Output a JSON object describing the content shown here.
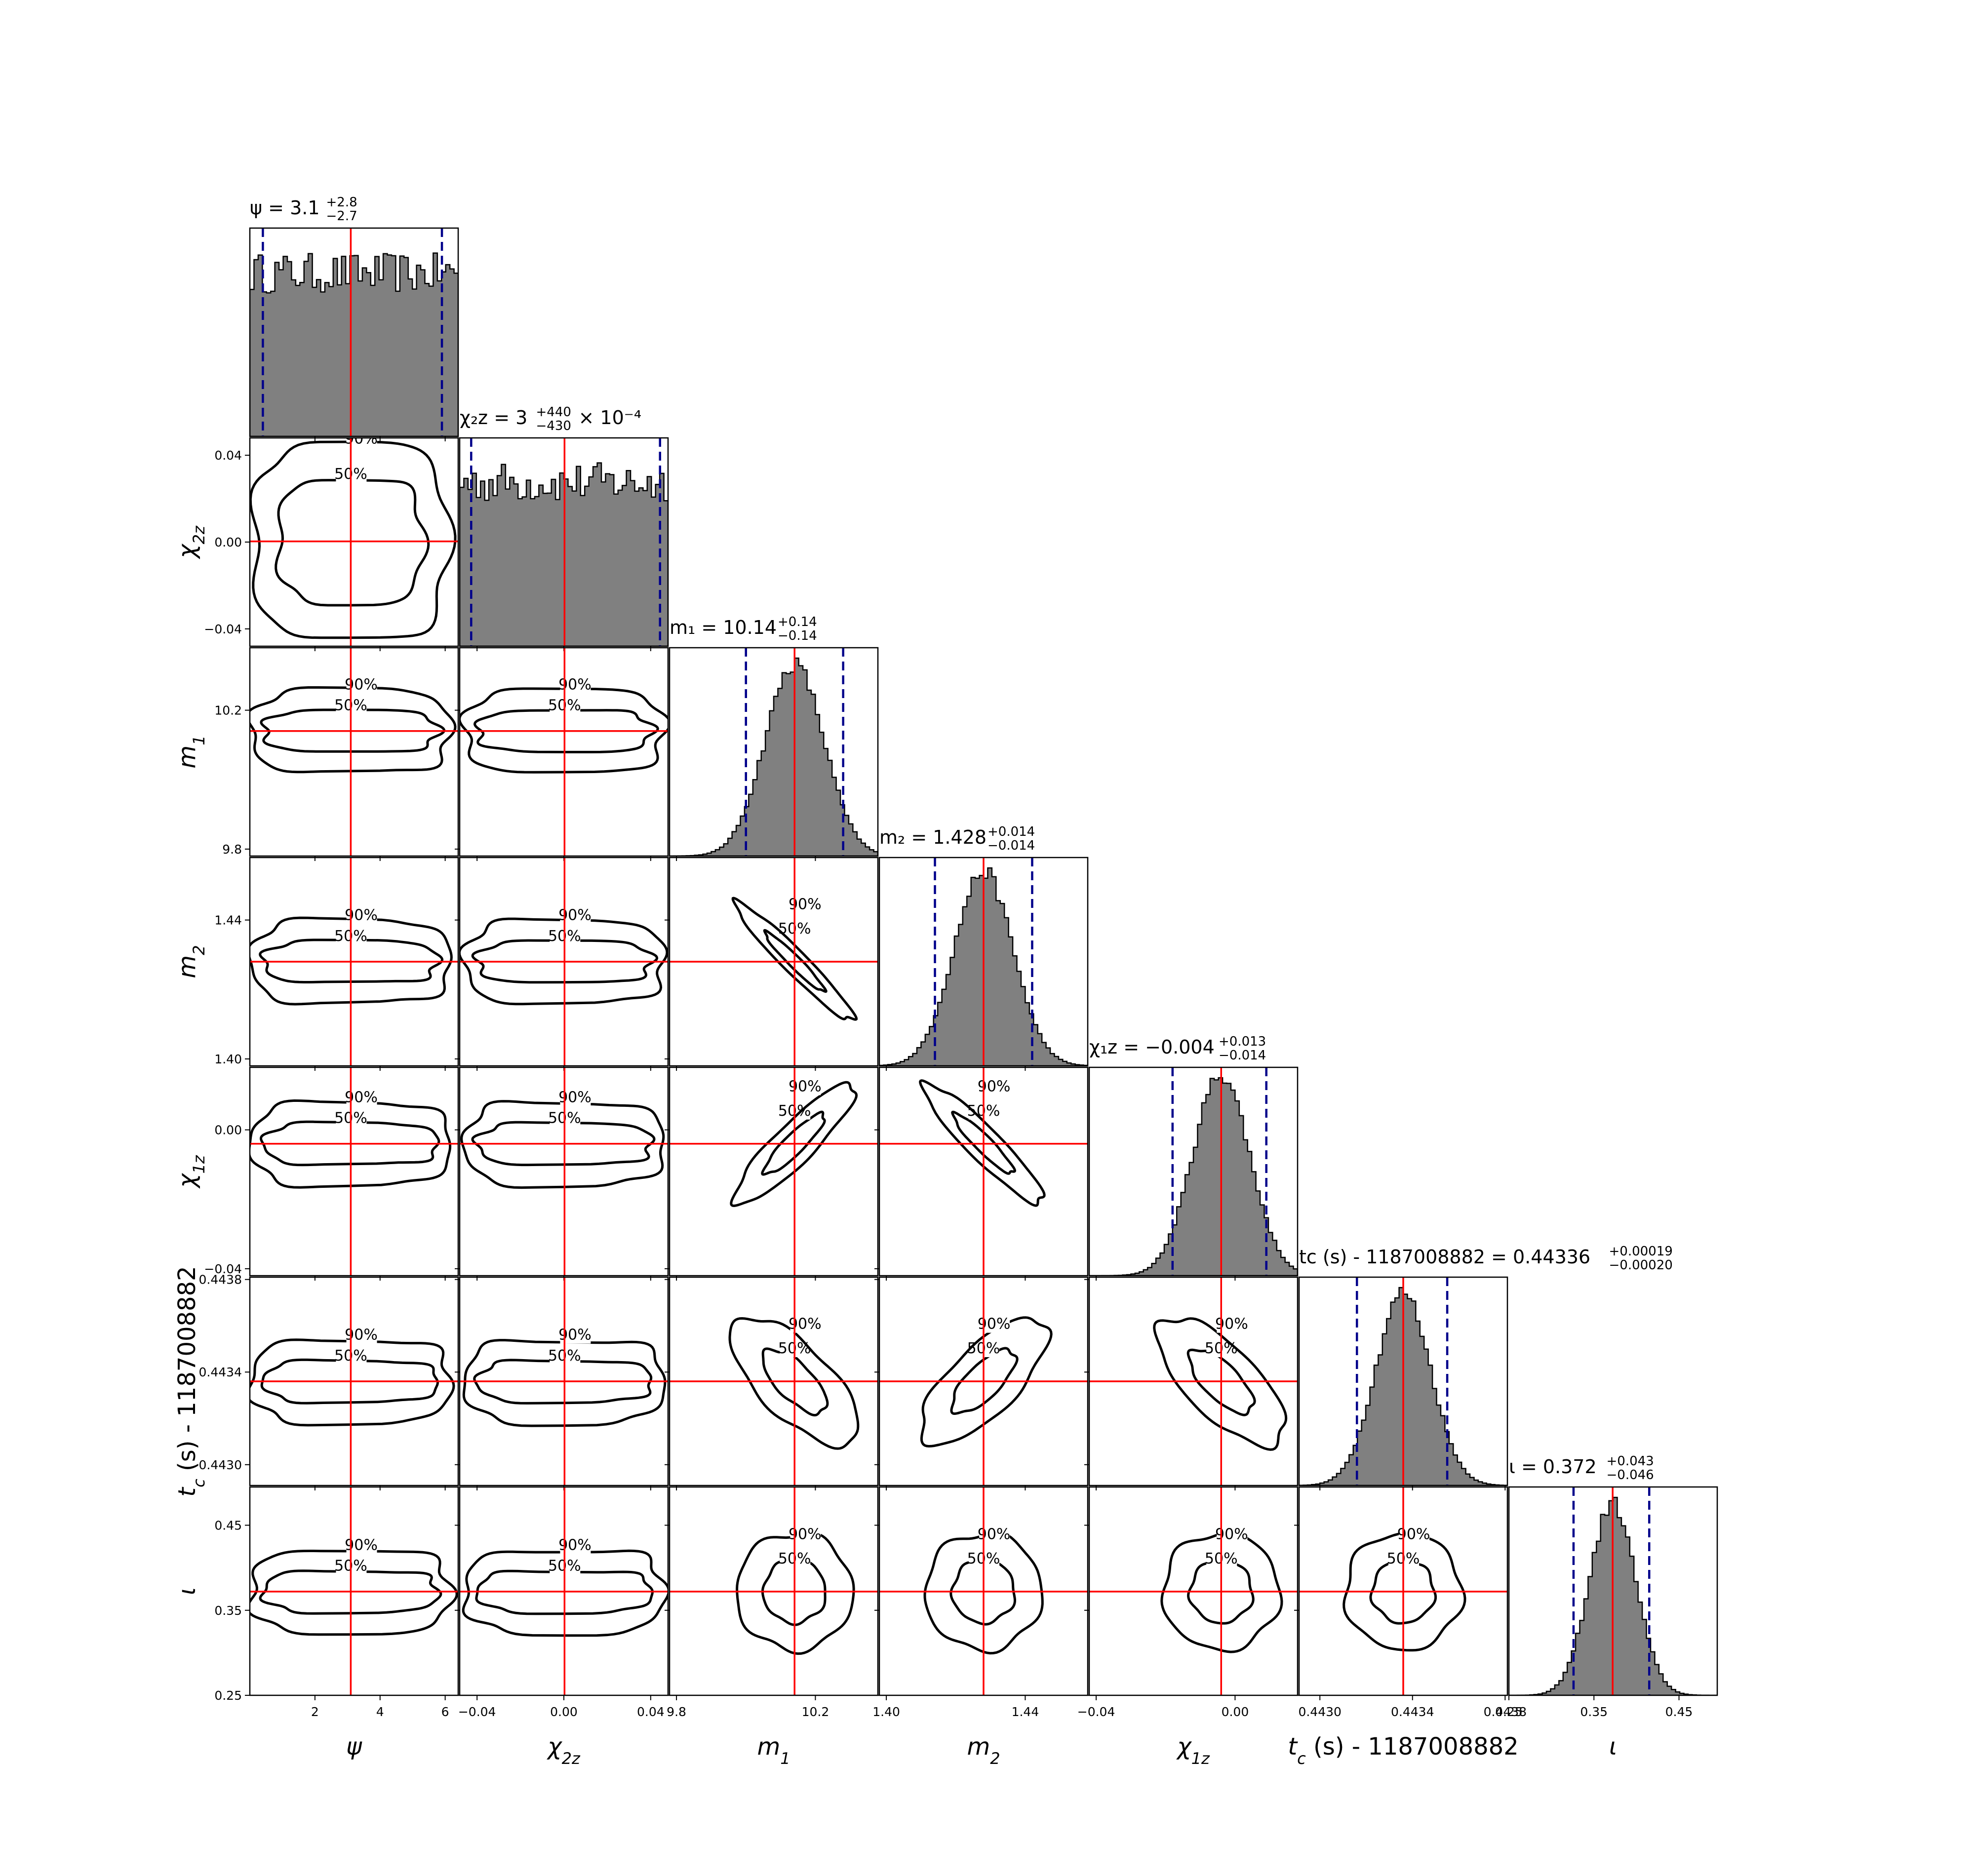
{
  "chart_data": {
    "type": "corner",
    "parameters": [
      {
        "symbol": "ψ",
        "sub": "",
        "truth": 3.1,
        "lo": 0.4,
        "hi": 5.9,
        "range": [
          0,
          6.4
        ],
        "ticks": [
          {
            "v": 2,
            "label": "2"
          },
          {
            "v": 4,
            "label": "4"
          },
          {
            "v": 6,
            "label": "6"
          }
        ],
        "title": "ψ = 3.1",
        "title_up": "+2.8",
        "title_down": "−2.7",
        "title_suffix": "",
        "axis_label": "ψ"
      },
      {
        "symbol": "χ",
        "sub": "2z",
        "truth": 0.0003,
        "lo": -0.0427,
        "hi": 0.0443,
        "range": [
          -0.048,
          0.048
        ],
        "ticks": [
          {
            "v": -0.04,
            "label": "−0.04"
          },
          {
            "v": 0.0,
            "label": "0.00"
          },
          {
            "v": 0.04,
            "label": "0.04"
          }
        ],
        "title": "χ2z = 3",
        "title_up": "+440",
        "title_down": "−430",
        "title_suffix": "× 10⁻⁴",
        "axis_label": "χ2z"
      },
      {
        "symbol": "m",
        "sub": "1",
        "truth": 10.14,
        "lo": 10.0,
        "hi": 10.28,
        "range": [
          9.78,
          10.38
        ],
        "ticks": [
          {
            "v": 9.8,
            "label": "9.8"
          },
          {
            "v": 10.2,
            "label": "10.2"
          }
        ],
        "title": "m1 = 10.14",
        "title_up": "+0.14",
        "title_down": "−0.14",
        "title_suffix": "",
        "axis_label": "m1"
      },
      {
        "symbol": "m",
        "sub": "2",
        "truth": 1.428,
        "lo": 1.414,
        "hi": 1.442,
        "range": [
          1.398,
          1.458
        ],
        "ticks": [
          {
            "v": 1.4,
            "label": "1.40"
          },
          {
            "v": 1.44,
            "label": "1.44"
          }
        ],
        "title": "m2 = 1.428",
        "title_up": "+0.014",
        "title_down": "−0.014",
        "title_suffix": "",
        "axis_label": "m2"
      },
      {
        "symbol": "χ",
        "sub": "1z",
        "truth": -0.004,
        "lo": -0.018,
        "hi": 0.009,
        "range": [
          -0.042,
          0.018
        ],
        "ticks": [
          {
            "v": -0.04,
            "label": "−0.04"
          },
          {
            "v": 0.0,
            "label": "0.00"
          }
        ],
        "title": "χ1z = −0.004",
        "title_up": "+0.013",
        "title_down": "−0.014",
        "title_suffix": "",
        "axis_label": "χ1z"
      },
      {
        "symbol": "t",
        "sub": "c",
        "truth": 0.44336,
        "lo": 0.44316,
        "hi": 0.44355,
        "range": [
          0.44291,
          0.44381
        ],
        "ticks": [
          {
            "v": 0.443,
            "label": "0.4430"
          },
          {
            "v": 0.4434,
            "label": "0.4434"
          },
          {
            "v": 0.4438,
            "label": "0.4438"
          }
        ],
        "title": "tc (s) - 1187008882 = 0.44336",
        "title_up": "+0.00019",
        "title_down": "−0.00020",
        "title_suffix": "",
        "axis_label": "tc (s) - 1187008882"
      },
      {
        "symbol": "ι",
        "sub": "",
        "truth": 0.372,
        "lo": 0.326,
        "hi": 0.415,
        "range": [
          0.25,
          0.495
        ],
        "ticks": [
          {
            "v": 0.25,
            "label": "0.25"
          },
          {
            "v": 0.35,
            "label": "0.35"
          },
          {
            "v": 0.45,
            "label": "0.45"
          }
        ],
        "title": "ι = 0.372",
        "title_up": "+0.043",
        "title_down": "−0.046",
        "title_suffix": "",
        "axis_label": "ι"
      }
    ],
    "titles": [
      {
        "main": "ψ = 3.1",
        "up": "+2.8",
        "down": "−2.7",
        "suffix": ""
      },
      {
        "main": "χ₂z = 3",
        "up": "+440",
        "down": "−430",
        "suffix": "× 10⁻⁴"
      },
      {
        "main": "m₁ = 10.14",
        "up": "+0.14",
        "down": "−0.14",
        "suffix": ""
      },
      {
        "main": "m₂ = 1.428",
        "up": "+0.014",
        "down": "−0.014",
        "suffix": ""
      },
      {
        "main": "χ₁z = −0.004",
        "up": "+0.013",
        "down": "−0.014",
        "suffix": ""
      },
      {
        "main": "tc (s) - 1187008882 = 0.44336",
        "up": "+0.00019",
        "down": "−0.00020",
        "suffix": ""
      },
      {
        "main": "ι = 0.372",
        "up": "+0.043",
        "down": "−0.046",
        "suffix": ""
      }
    ],
    "axis_labels": [
      "ψ",
      "χ2z",
      "m1",
      "m2",
      "χ1z",
      "tc (s) - 1187008882",
      "ι"
    ],
    "histogram_color": "#808080",
    "truth_color": "#ff0000",
    "quantile_color": "#00008b",
    "contour_levels": [
      "50%",
      "90%"
    ],
    "correlations": {
      "1,0": 0.0,
      "2,0": 0.0,
      "2,1": 0.0,
      "3,0": 0.0,
      "3,1": 0.0,
      "3,2": -0.95,
      "4,0": 0.0,
      "4,1": 0.0,
      "4,2": 0.85,
      "4,3": -0.9,
      "5,0": 0.0,
      "5,1": -0.3,
      "5,2": -0.3,
      "5,3": 0.45,
      "5,4": -0.35,
      "6,0": 0.0,
      "6,1": 0.0,
      "6,2": 0.0,
      "6,3": 0.0,
      "6,4": 0.0,
      "6,5": 0.0
    }
  }
}
